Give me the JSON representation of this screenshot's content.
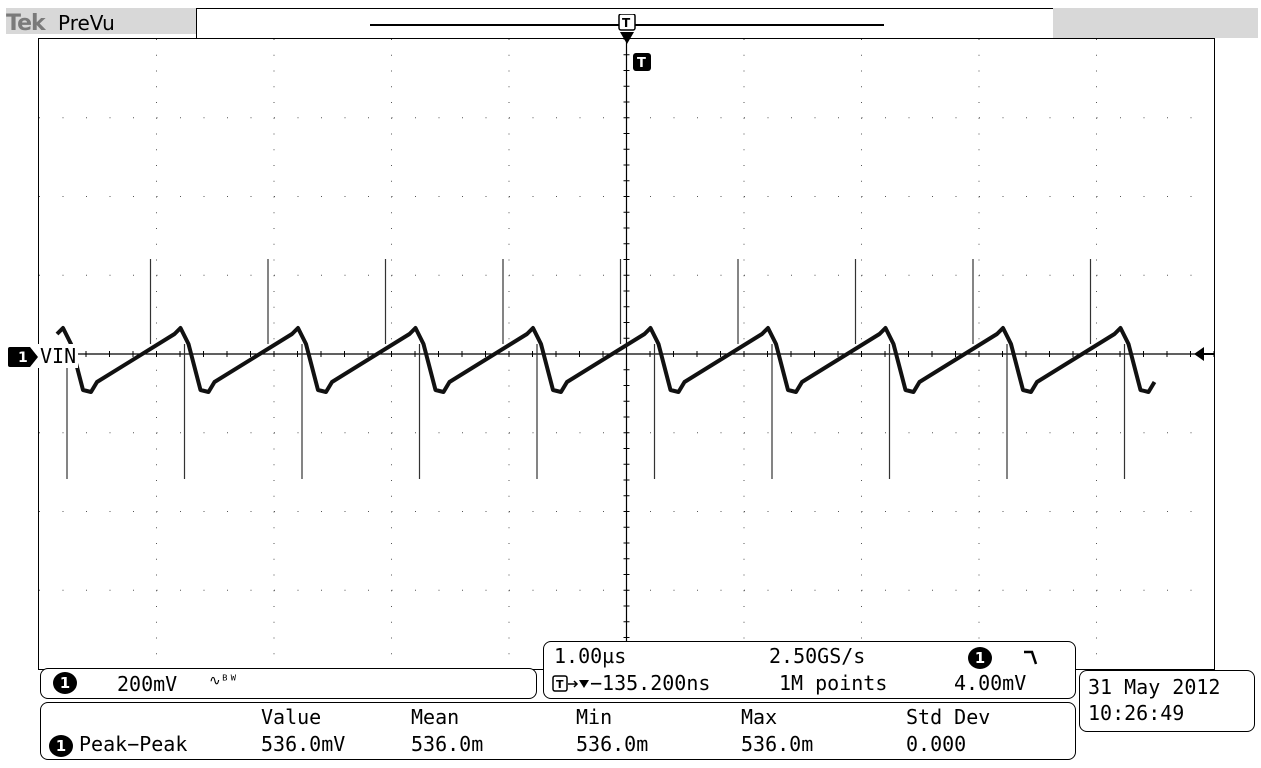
{
  "header": {
    "brand": "Tek",
    "mode": "PreVu"
  },
  "channel": {
    "number": "1",
    "label": "VIN",
    "scale": "200mV",
    "bw_icon": "bandwidth-limit-icon"
  },
  "timebase": {
    "horizontal_scale": "1.00µs",
    "sample_rate": "2.50GS/s",
    "trigger_channel": "1",
    "trigger_slope_icon": "falling-edge-icon",
    "trigger_delay": "−135.200ns",
    "record_length": "1M points",
    "trigger_level": "4.00mV"
  },
  "datetime": {
    "date": "31 May 2012",
    "time": "10:26:49"
  },
  "measurements": {
    "headers": [
      "Value",
      "Mean",
      "Min",
      "Max",
      "Std Dev"
    ],
    "rows": [
      {
        "channel": "1",
        "name": "Peak−Peak",
        "value": "536.0mV",
        "mean": "536.0m",
        "min": "536.0m",
        "max": "536.0m",
        "std_dev": "0.000"
      }
    ]
  },
  "waveform": {
    "description_free": true,
    "period_us": 1.0,
    "peak_to_peak_mV": 536.0,
    "divisions_x": 10,
    "divisions_y": 8
  }
}
